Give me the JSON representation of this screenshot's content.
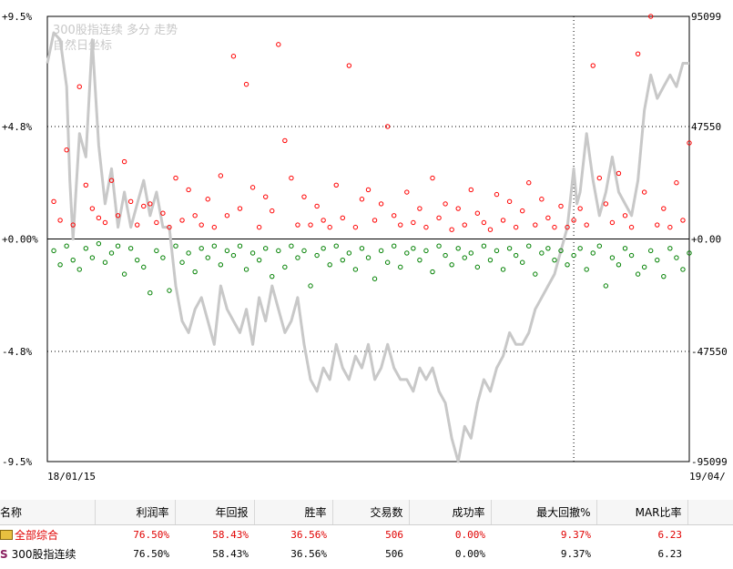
{
  "colors": {
    "up_points": "#ff0000",
    "down_points": "#008000",
    "price_line": "#c8c8c8",
    "grid": "#000000",
    "total_row_text": "#e00000"
  },
  "chart_data": {
    "type": "scatter",
    "title": "300股指连续  多分  走势",
    "subtitle": "自然日坐标",
    "x_start_label": "18/01/15",
    "x_end_label": "19/04/",
    "left_ticks": [
      "+9.5%",
      "+4.8%",
      "+0.00%",
      "-4.8%",
      "-9.5%"
    ],
    "right_ticks": [
      "95099",
      "47550",
      "+0.00",
      "-47550",
      "-95099"
    ],
    "ylim": [
      -9.5,
      9.5
    ],
    "grid": "dotted",
    "series": [
      {
        "kind": "price_line",
        "x": [
          0,
          1,
          2,
          3,
          3.5,
          4,
          5,
          6,
          7,
          8,
          9,
          10,
          11,
          12,
          13,
          14,
          15,
          16,
          17,
          18,
          19,
          20,
          21,
          22,
          23,
          24,
          25,
          26,
          27,
          28,
          29,
          30,
          31,
          32,
          33,
          34,
          35,
          36,
          37,
          38,
          39,
          40,
          41,
          42,
          43,
          44,
          45,
          46,
          47,
          48,
          49,
          50,
          51,
          52,
          53,
          54,
          55,
          56,
          57,
          58,
          59,
          60,
          61,
          62,
          63,
          64,
          65,
          66,
          67,
          68,
          69,
          70,
          71,
          72,
          73,
          74,
          75,
          76,
          77,
          78,
          79,
          80,
          81,
          82,
          82.5,
          83,
          84,
          85,
          86,
          87,
          88,
          89,
          90,
          91,
          92,
          93,
          94,
          95,
          96,
          97,
          98,
          99,
          100
        ],
        "y": [
          7.5,
          8.8,
          8.5,
          6.5,
          2.5,
          0,
          4.5,
          3.5,
          8.5,
          4.0,
          1.5,
          3.0,
          0.5,
          2.0,
          0.5,
          1.5,
          2.5,
          1.0,
          2.0,
          0.5,
          0.5,
          -2.0,
          -3.5,
          -4.0,
          -3.0,
          -2.5,
          -3.5,
          -4.5,
          -2.0,
          -3.0,
          -3.5,
          -4.0,
          -3.0,
          -4.5,
          -2.5,
          -3.5,
          -2.0,
          -3.0,
          -4.0,
          -3.5,
          -2.5,
          -4.5,
          -6.0,
          -6.5,
          -5.5,
          -6.0,
          -4.5,
          -5.5,
          -6.0,
          -5.0,
          -5.5,
          -4.5,
          -6.0,
          -5.5,
          -4.5,
          -5.5,
          -6.0,
          -6.0,
          -6.5,
          -5.5,
          -6.0,
          -5.5,
          -6.5,
          -7.0,
          -8.5,
          -9.5,
          -8.0,
          -8.5,
          -7.0,
          -6.0,
          -6.5,
          -5.5,
          -5.0,
          -4.0,
          -4.5,
          -4.5,
          -4.0,
          -3.0,
          -2.5,
          -2.0,
          -1.5,
          -0.5,
          0.5,
          3.0,
          1.5,
          2.0,
          4.5,
          2.5,
          1.0,
          2.0,
          3.5,
          2.0,
          1.5,
          1.0,
          2.5,
          5.5,
          7.0,
          6.0,
          6.5,
          7.0,
          6.5,
          7.5,
          7.5
        ]
      },
      {
        "kind": "up_trades",
        "x": [
          1,
          2,
          3,
          4,
          5,
          6,
          7,
          8,
          9,
          10,
          11,
          12,
          13,
          14,
          15,
          16,
          17,
          18,
          19,
          20,
          21,
          22,
          23,
          24,
          25,
          26,
          27,
          28,
          29,
          30,
          31,
          32,
          33,
          34,
          35,
          36,
          37,
          38,
          39,
          40,
          41,
          42,
          43,
          44,
          45,
          46,
          47,
          48,
          49,
          50,
          51,
          52,
          53,
          54,
          55,
          56,
          57,
          58,
          59,
          60,
          61,
          62,
          63,
          64,
          65,
          66,
          67,
          68,
          69,
          70,
          71,
          72,
          73,
          74,
          75,
          76,
          77,
          78,
          79,
          80,
          81,
          82,
          83,
          84,
          85,
          86,
          87,
          88,
          89,
          90,
          91,
          92,
          93,
          94,
          95,
          96,
          97,
          98,
          99,
          100
        ],
        "y": [
          1.6,
          0.8,
          3.8,
          0.6,
          6.5,
          2.3,
          1.3,
          0.9,
          0.7,
          2.5,
          1.0,
          3.3,
          1.6,
          0.6,
          1.4,
          1.5,
          0.7,
          1.1,
          0.5,
          2.6,
          0.8,
          2.1,
          1.0,
          0.6,
          1.7,
          0.5,
          2.7,
          1.0,
          7.8,
          1.3,
          6.6,
          2.2,
          0.5,
          1.8,
          1.2,
          8.3,
          4.2,
          2.6,
          0.6,
          1.8,
          0.6,
          1.4,
          0.8,
          0.5,
          2.3,
          0.9,
          7.4,
          0.5,
          1.7,
          2.1,
          0.8,
          1.5,
          4.8,
          1.0,
          0.6,
          2.0,
          0.7,
          1.3,
          0.5,
          2.6,
          0.9,
          1.5,
          0.4,
          1.3,
          0.6,
          2.1,
          1.1,
          0.7,
          0.4,
          1.9,
          0.8,
          1.6,
          0.5,
          1.2,
          2.4,
          0.6,
          1.7,
          0.9,
          0.5,
          1.4,
          0.5,
          0.8,
          1.3,
          0.6,
          7.4,
          2.6,
          1.5,
          0.7,
          2.8,
          1.0,
          0.5,
          7.9,
          2.0,
          9.5,
          0.6,
          1.3,
          0.5,
          2.4,
          0.8,
          4.1
        ]
      },
      {
        "kind": "down_trades",
        "x": [
          1,
          2,
          3,
          4,
          5,
          6,
          7,
          8,
          9,
          10,
          11,
          12,
          13,
          14,
          15,
          16,
          17,
          18,
          19,
          20,
          21,
          22,
          23,
          24,
          25,
          26,
          27,
          28,
          29,
          30,
          31,
          32,
          33,
          34,
          35,
          36,
          37,
          38,
          39,
          40,
          41,
          42,
          43,
          44,
          45,
          46,
          47,
          48,
          49,
          50,
          51,
          52,
          53,
          54,
          55,
          56,
          57,
          58,
          59,
          60,
          61,
          62,
          63,
          64,
          65,
          66,
          67,
          68,
          69,
          70,
          71,
          72,
          73,
          74,
          75,
          76,
          77,
          78,
          79,
          80,
          81,
          82,
          83,
          84,
          85,
          86,
          87,
          88,
          89,
          90,
          91,
          92,
          93,
          94,
          95,
          96,
          97,
          98,
          99,
          100
        ],
        "y": [
          -0.5,
          -1.1,
          -0.3,
          -0.9,
          -1.3,
          -0.4,
          -0.8,
          -0.2,
          -1.0,
          -0.6,
          -0.3,
          -1.5,
          -0.4,
          -0.9,
          -1.2,
          -2.3,
          -0.5,
          -0.8,
          -2.2,
          -0.3,
          -1.0,
          -0.6,
          -1.4,
          -0.4,
          -0.8,
          -0.3,
          -1.1,
          -0.5,
          -0.7,
          -0.3,
          -1.3,
          -0.6,
          -0.9,
          -0.4,
          -1.6,
          -0.5,
          -1.2,
          -0.3,
          -0.8,
          -0.5,
          -2.0,
          -0.7,
          -0.4,
          -1.1,
          -0.3,
          -0.9,
          -0.6,
          -1.3,
          -0.4,
          -0.8,
          -1.7,
          -0.5,
          -1.0,
          -0.3,
          -1.2,
          -0.6,
          -0.4,
          -0.9,
          -0.5,
          -1.4,
          -0.3,
          -0.7,
          -1.1,
          -0.4,
          -0.8,
          -0.6,
          -1.2,
          -0.3,
          -0.9,
          -0.5,
          -1.3,
          -0.4,
          -0.7,
          -1.0,
          -0.3,
          -1.5,
          -0.6,
          -0.4,
          -0.9,
          -0.5,
          -1.1,
          -0.7,
          -0.4,
          -1.3,
          -0.6,
          -0.3,
          -2.0,
          -0.8,
          -1.1,
          -0.4,
          -0.7,
          -1.5,
          -1.2,
          -0.5,
          -0.9,
          -1.6,
          -0.4,
          -0.8,
          -1.3,
          -0.6
        ]
      }
    ],
    "x_vertical_marker": 82
  },
  "table": {
    "headers": [
      "名称",
      "利润率",
      "年回报",
      "胜率",
      "交易数",
      "成功率",
      "最大回撤%",
      "MAR比率"
    ],
    "rows": [
      {
        "icon": "folder-icon",
        "values": [
          "全部综合",
          "76.50%",
          "58.43%",
          "36.56%",
          "506",
          "0.00%",
          "9.37%",
          "6.23"
        ]
      },
      {
        "icon": "s-icon",
        "icon_text": "S",
        "values": [
          "300股指连续",
          "76.50%",
          "58.43%",
          "36.56%",
          "506",
          "0.00%",
          "9.37%",
          "6.23"
        ]
      }
    ]
  }
}
